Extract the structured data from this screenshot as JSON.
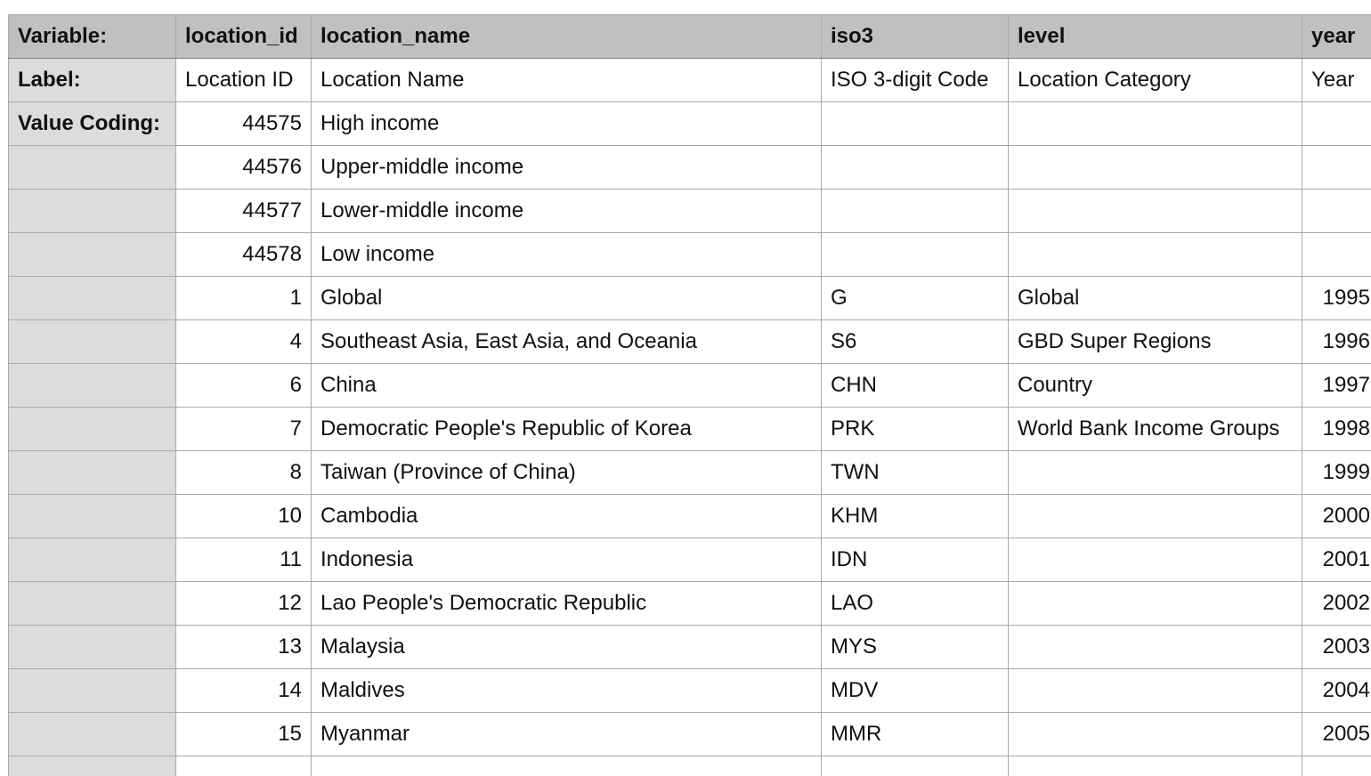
{
  "header": {
    "row_label": "Variable:",
    "columns": [
      "location_id",
      "location_name",
      "iso3",
      "level",
      "year"
    ]
  },
  "label_row": {
    "row_label": "Label:",
    "cells": [
      "Location ID",
      "Location Name",
      "ISO 3-digit Code",
      "Location Category",
      "Year"
    ]
  },
  "value_coding_label": "Value Coding:",
  "rows": [
    {
      "location_id": "44575",
      "location_name": "High income",
      "iso3": "",
      "level": "",
      "year": ""
    },
    {
      "location_id": "44576",
      "location_name": "Upper-middle income",
      "iso3": "",
      "level": "",
      "year": ""
    },
    {
      "location_id": "44577",
      "location_name": "Lower-middle income",
      "iso3": "",
      "level": "",
      "year": ""
    },
    {
      "location_id": "44578",
      "location_name": "Low income",
      "iso3": "",
      "level": "",
      "year": ""
    },
    {
      "location_id": "1",
      "location_name": "Global",
      "iso3": "G",
      "level": "Global",
      "year": "1995"
    },
    {
      "location_id": "4",
      "location_name": "Southeast Asia, East Asia, and Oceania",
      "iso3": "S6",
      "level": "GBD Super Regions",
      "year": "1996"
    },
    {
      "location_id": "6",
      "location_name": "China",
      "iso3": "CHN",
      "level": "Country",
      "year": "1997"
    },
    {
      "location_id": "7",
      "location_name": "Democratic People's Republic of Korea",
      "iso3": "PRK",
      "level": "World Bank Income Groups",
      "year": "1998"
    },
    {
      "location_id": "8",
      "location_name": "Taiwan (Province of China)",
      "iso3": "TWN",
      "level": "",
      "year": "1999"
    },
    {
      "location_id": "10",
      "location_name": "Cambodia",
      "iso3": "KHM",
      "level": "",
      "year": "2000"
    },
    {
      "location_id": "11",
      "location_name": "Indonesia",
      "iso3": "IDN",
      "level": "",
      "year": "2001"
    },
    {
      "location_id": "12",
      "location_name": "Lao People's Democratic Republic",
      "iso3": "LAO",
      "level": "",
      "year": "2002"
    },
    {
      "location_id": "13",
      "location_name": "Malaysia",
      "iso3": "MYS",
      "level": "",
      "year": "2003"
    },
    {
      "location_id": "14",
      "location_name": "Maldives",
      "iso3": "MDV",
      "level": "",
      "year": "2004"
    },
    {
      "location_id": "15",
      "location_name": "Myanmar",
      "iso3": "MMR",
      "level": "",
      "year": "2005"
    },
    {
      "location_id": "",
      "location_name": "",
      "iso3": "",
      "level": "",
      "year": ""
    }
  ]
}
